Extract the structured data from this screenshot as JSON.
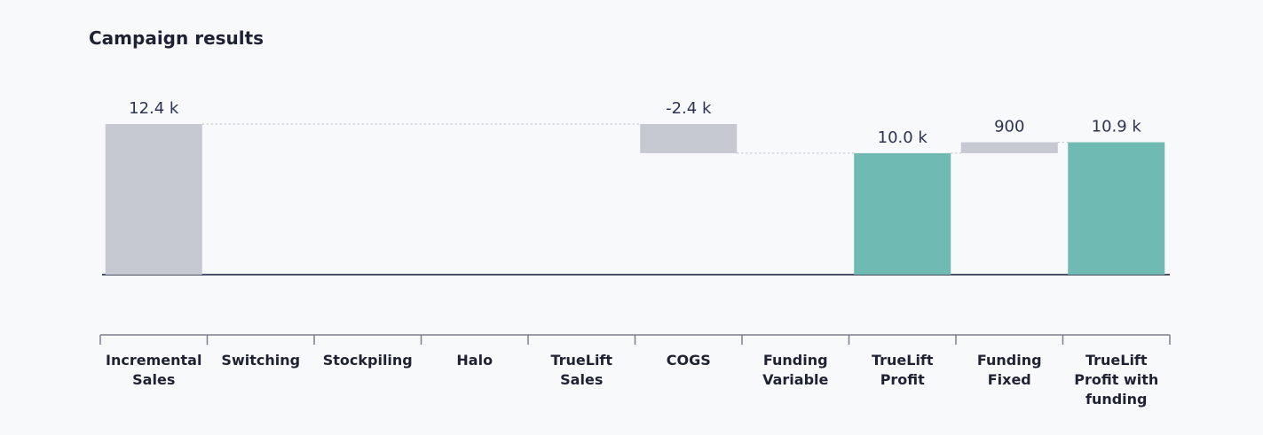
{
  "chart_data": {
    "type": "waterfall",
    "title": "Campaign results",
    "categories": [
      "Incremental Sales",
      "Switching",
      "Stockpiling",
      "Halo",
      "TrueLift Sales",
      "COGS",
      "Funding Variable",
      "TrueLift Profit",
      "Funding Fixed",
      "TrueLift Profit with funding"
    ],
    "values": [
      12400,
      0,
      0,
      0,
      0,
      -2400,
      0,
      10000,
      900,
      10900
    ],
    "value_labels": [
      "12.4 k",
      null,
      null,
      null,
      null,
      "-2.4 k",
      null,
      "10.0 k",
      "900",
      "10.9 k"
    ],
    "is_total": [
      true,
      false,
      false,
      false,
      false,
      false,
      false,
      true,
      false,
      true
    ],
    "colors": [
      "#c6c8d2",
      "#c6c8d2",
      "#c6c8d2",
      "#c6c8d2",
      "#c6c8d2",
      "#c6c8d2",
      "#c6c8d2",
      "#6fbab2",
      "#c6c8d2",
      "#6fbab2"
    ]
  }
}
